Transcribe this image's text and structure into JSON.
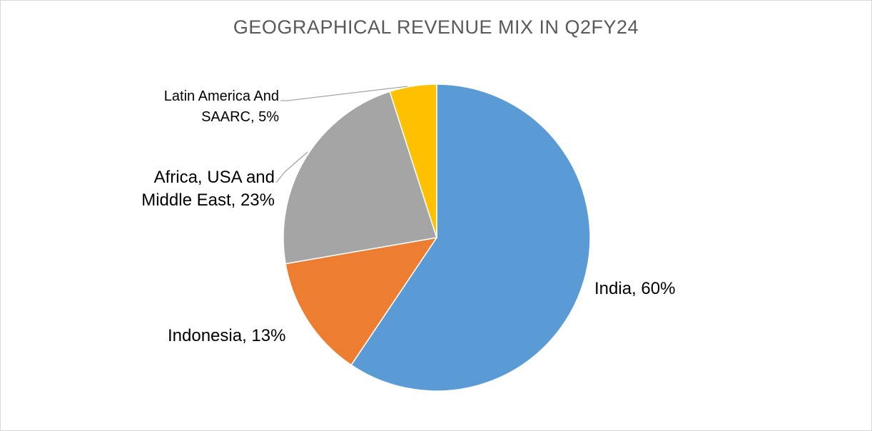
{
  "chart_data": {
    "type": "pie",
    "title": "GEOGRAPHICAL REVENUE MIX IN Q2FY24",
    "slices": [
      {
        "name": "India",
        "value": 60,
        "color": "#5B9BD5",
        "label_line1": "India, 60%",
        "label_line2": ""
      },
      {
        "name": "Indonesia",
        "value": 13,
        "color": "#ED7D31",
        "label_line1": "Indonesia, 13%",
        "label_line2": ""
      },
      {
        "name": "Africa, USA and Middle East",
        "value": 23,
        "color": "#A5A5A5",
        "label_line1": "Africa, USA and",
        "label_line2": "Middle East, 23%"
      },
      {
        "name": "Latin America And SAARC",
        "value": 5,
        "color": "#FFC000",
        "label_line1": "Latin America And",
        "label_line2": "SAARC, 5%"
      }
    ],
    "legend": "none",
    "label_format": "category, percent"
  }
}
